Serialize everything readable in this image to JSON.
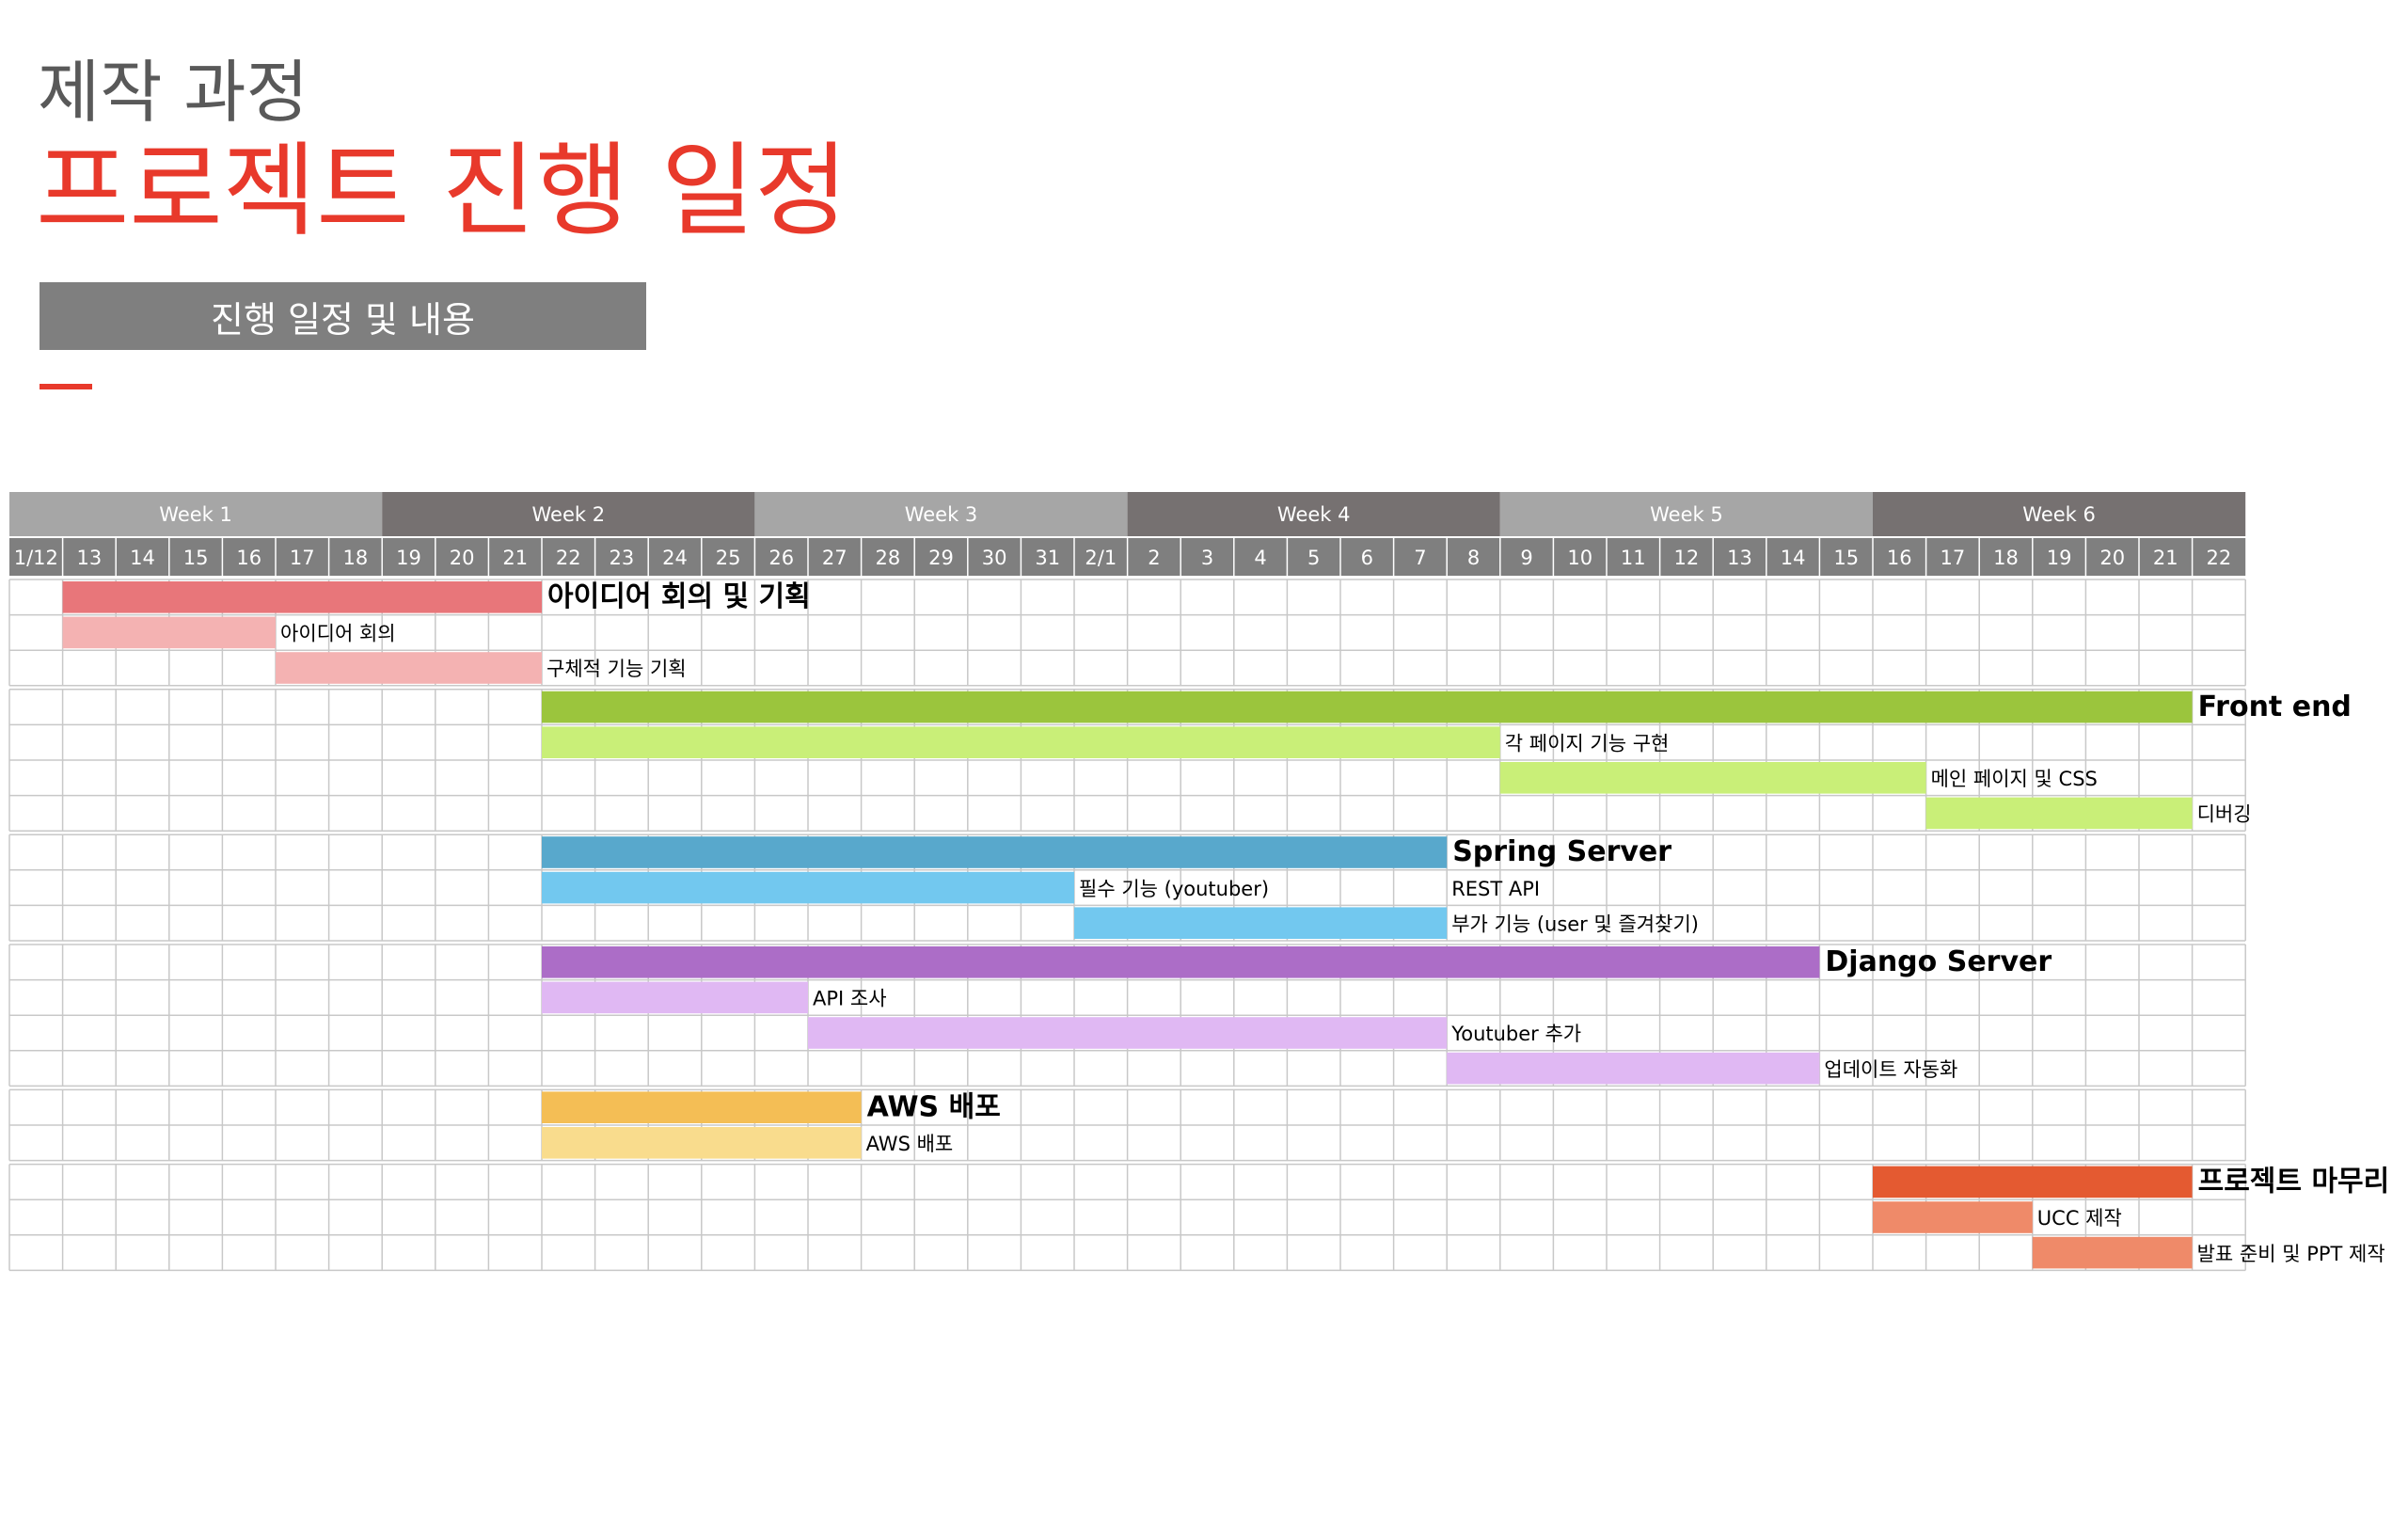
{
  "header": {
    "subtitle": "제작 과정",
    "title": "프로젝트 진행 일정",
    "section_label": "진행 일정 및 내용"
  },
  "colors": {
    "week_light": "#a6a6a6",
    "week_dark": "#767171",
    "date_bg": "#7f7f7f",
    "grid": "#c8c8c8",
    "accent": "#e8392b"
  },
  "chart_data": {
    "type": "gantt",
    "weeks": [
      "Week 1",
      "Week 2",
      "Week 3",
      "Week 4",
      "Week 5",
      "Week 6"
    ],
    "dates": [
      "1/12",
      "13",
      "14",
      "15",
      "16",
      "17",
      "18",
      "19",
      "20",
      "21",
      "22",
      "23",
      "24",
      "25",
      "26",
      "27",
      "28",
      "29",
      "30",
      "31",
      "2/1",
      "2",
      "3",
      "4",
      "5",
      "6",
      "7",
      "8",
      "9",
      "10",
      "11",
      "12",
      "13",
      "14",
      "15",
      "16",
      "17",
      "18",
      "19",
      "20",
      "21",
      "22"
    ],
    "groups": [
      {
        "name": "아이디어 회의 및 기획",
        "color": "#e8767a",
        "tasks": [
          {
            "name": "아이디어 회의",
            "start": "1/13",
            "end": "1/16",
            "color": "#f4b2b2"
          },
          {
            "name": "구체적 기능 기획",
            "start": "1/17",
            "end": "1/21",
            "color": "#f4b2b2"
          }
        ],
        "start": "1/13",
        "end": "1/21"
      },
      {
        "name": "Front end",
        "color": "#9bc53d",
        "start": "1/22",
        "end": "2/21",
        "tasks": [
          {
            "name": "각 페이지 기능 구현",
            "start": "1/22",
            "end": "2/8",
            "color": "#c9ef78"
          },
          {
            "name": "메인 페이지 및 CSS",
            "start": "2/9",
            "end": "2/16",
            "color": "#c9ef78"
          },
          {
            "name": "디버깅",
            "start": "2/17",
            "end": "2/21",
            "color": "#c9ef78"
          }
        ]
      },
      {
        "name": "Spring Server",
        "color": "#58a8cc",
        "start": "1/22",
        "end": "2/7",
        "tasks": [
          {
            "name": "필수 기능 (youtuber)",
            "start": "1/22",
            "end": "1/31",
            "color": "#72c8ef"
          },
          {
            "name": "REST API",
            "start": null,
            "end": null,
            "label_after": "2/7",
            "color": "#72c8ef"
          },
          {
            "name": "부가 기능 (user 및 즐겨찾기)",
            "start": "2/1",
            "end": "2/7",
            "color": "#72c8ef"
          }
        ]
      },
      {
        "name": "Django Server",
        "color": "#ac6dc7",
        "start": "1/22",
        "end": "2/14",
        "tasks": [
          {
            "name": "API 조사",
            "start": "1/22",
            "end": "1/26",
            "color": "#e0b8f3"
          },
          {
            "name": "Youtuber 추가",
            "start": "1/27",
            "end": "2/7",
            "color": "#e0b8f3"
          },
          {
            "name": "업데이트 자동화",
            "start": "2/8",
            "end": "2/14",
            "color": "#e0b8f3"
          }
        ]
      },
      {
        "name": "AWS 배포",
        "color": "#f4be55",
        "start": "1/22",
        "end": "1/27",
        "tasks": [
          {
            "name": "AWS 배포",
            "start": "1/22",
            "end": "1/27",
            "color": "#f9dc8d"
          }
        ]
      },
      {
        "name": "프로젝트 마무리",
        "color": "#e45a31",
        "start": "2/16",
        "end": "2/21",
        "tasks": [
          {
            "name": "UCC 제작",
            "start": "2/16",
            "end": "2/18",
            "color": "#ef8a69"
          },
          {
            "name": "발표 준비 및 PPT 제작",
            "start": "2/19",
            "end": "2/21",
            "color": "#ef8a69"
          }
        ]
      }
    ]
  }
}
